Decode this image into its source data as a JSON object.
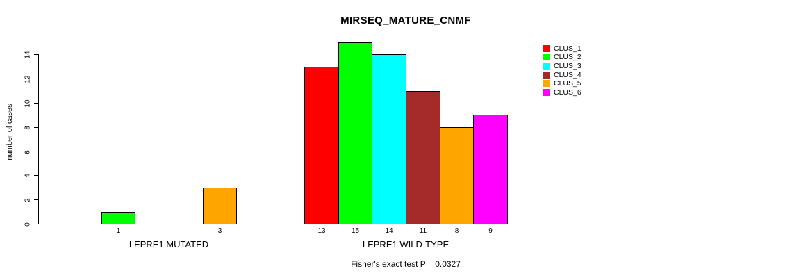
{
  "chart_data": {
    "type": "bar",
    "title": "MIRSEQ_MATURE_CNMF",
    "ylabel": "number of cases",
    "ylim": [
      0,
      15
    ],
    "yticks": [
      0,
      2,
      4,
      6,
      8,
      10,
      12,
      14
    ],
    "grid": false,
    "legend_position": "top-right",
    "annotation": "Fisher's exact test P = 0.0327",
    "clusters": [
      {
        "name": "CLUS_1",
        "color": "#FF0000"
      },
      {
        "name": "CLUS_2",
        "color": "#00FF00"
      },
      {
        "name": "CLUS_3",
        "color": "#00FFFF"
      },
      {
        "name": "CLUS_4",
        "color": "#A52A2A"
      },
      {
        "name": "CLUS_5",
        "color": "#FFA500"
      },
      {
        "name": "CLUS_6",
        "color": "#FF00FF"
      }
    ],
    "groups": [
      {
        "label": "LEPRE1 MUTATED",
        "values": [
          0,
          1,
          0,
          0,
          3,
          0
        ]
      },
      {
        "label": "LEPRE1 WILD-TYPE",
        "values": [
          13,
          15,
          14,
          11,
          8,
          9
        ]
      }
    ],
    "bar_value_labels": "shown below each non-zero bar"
  }
}
